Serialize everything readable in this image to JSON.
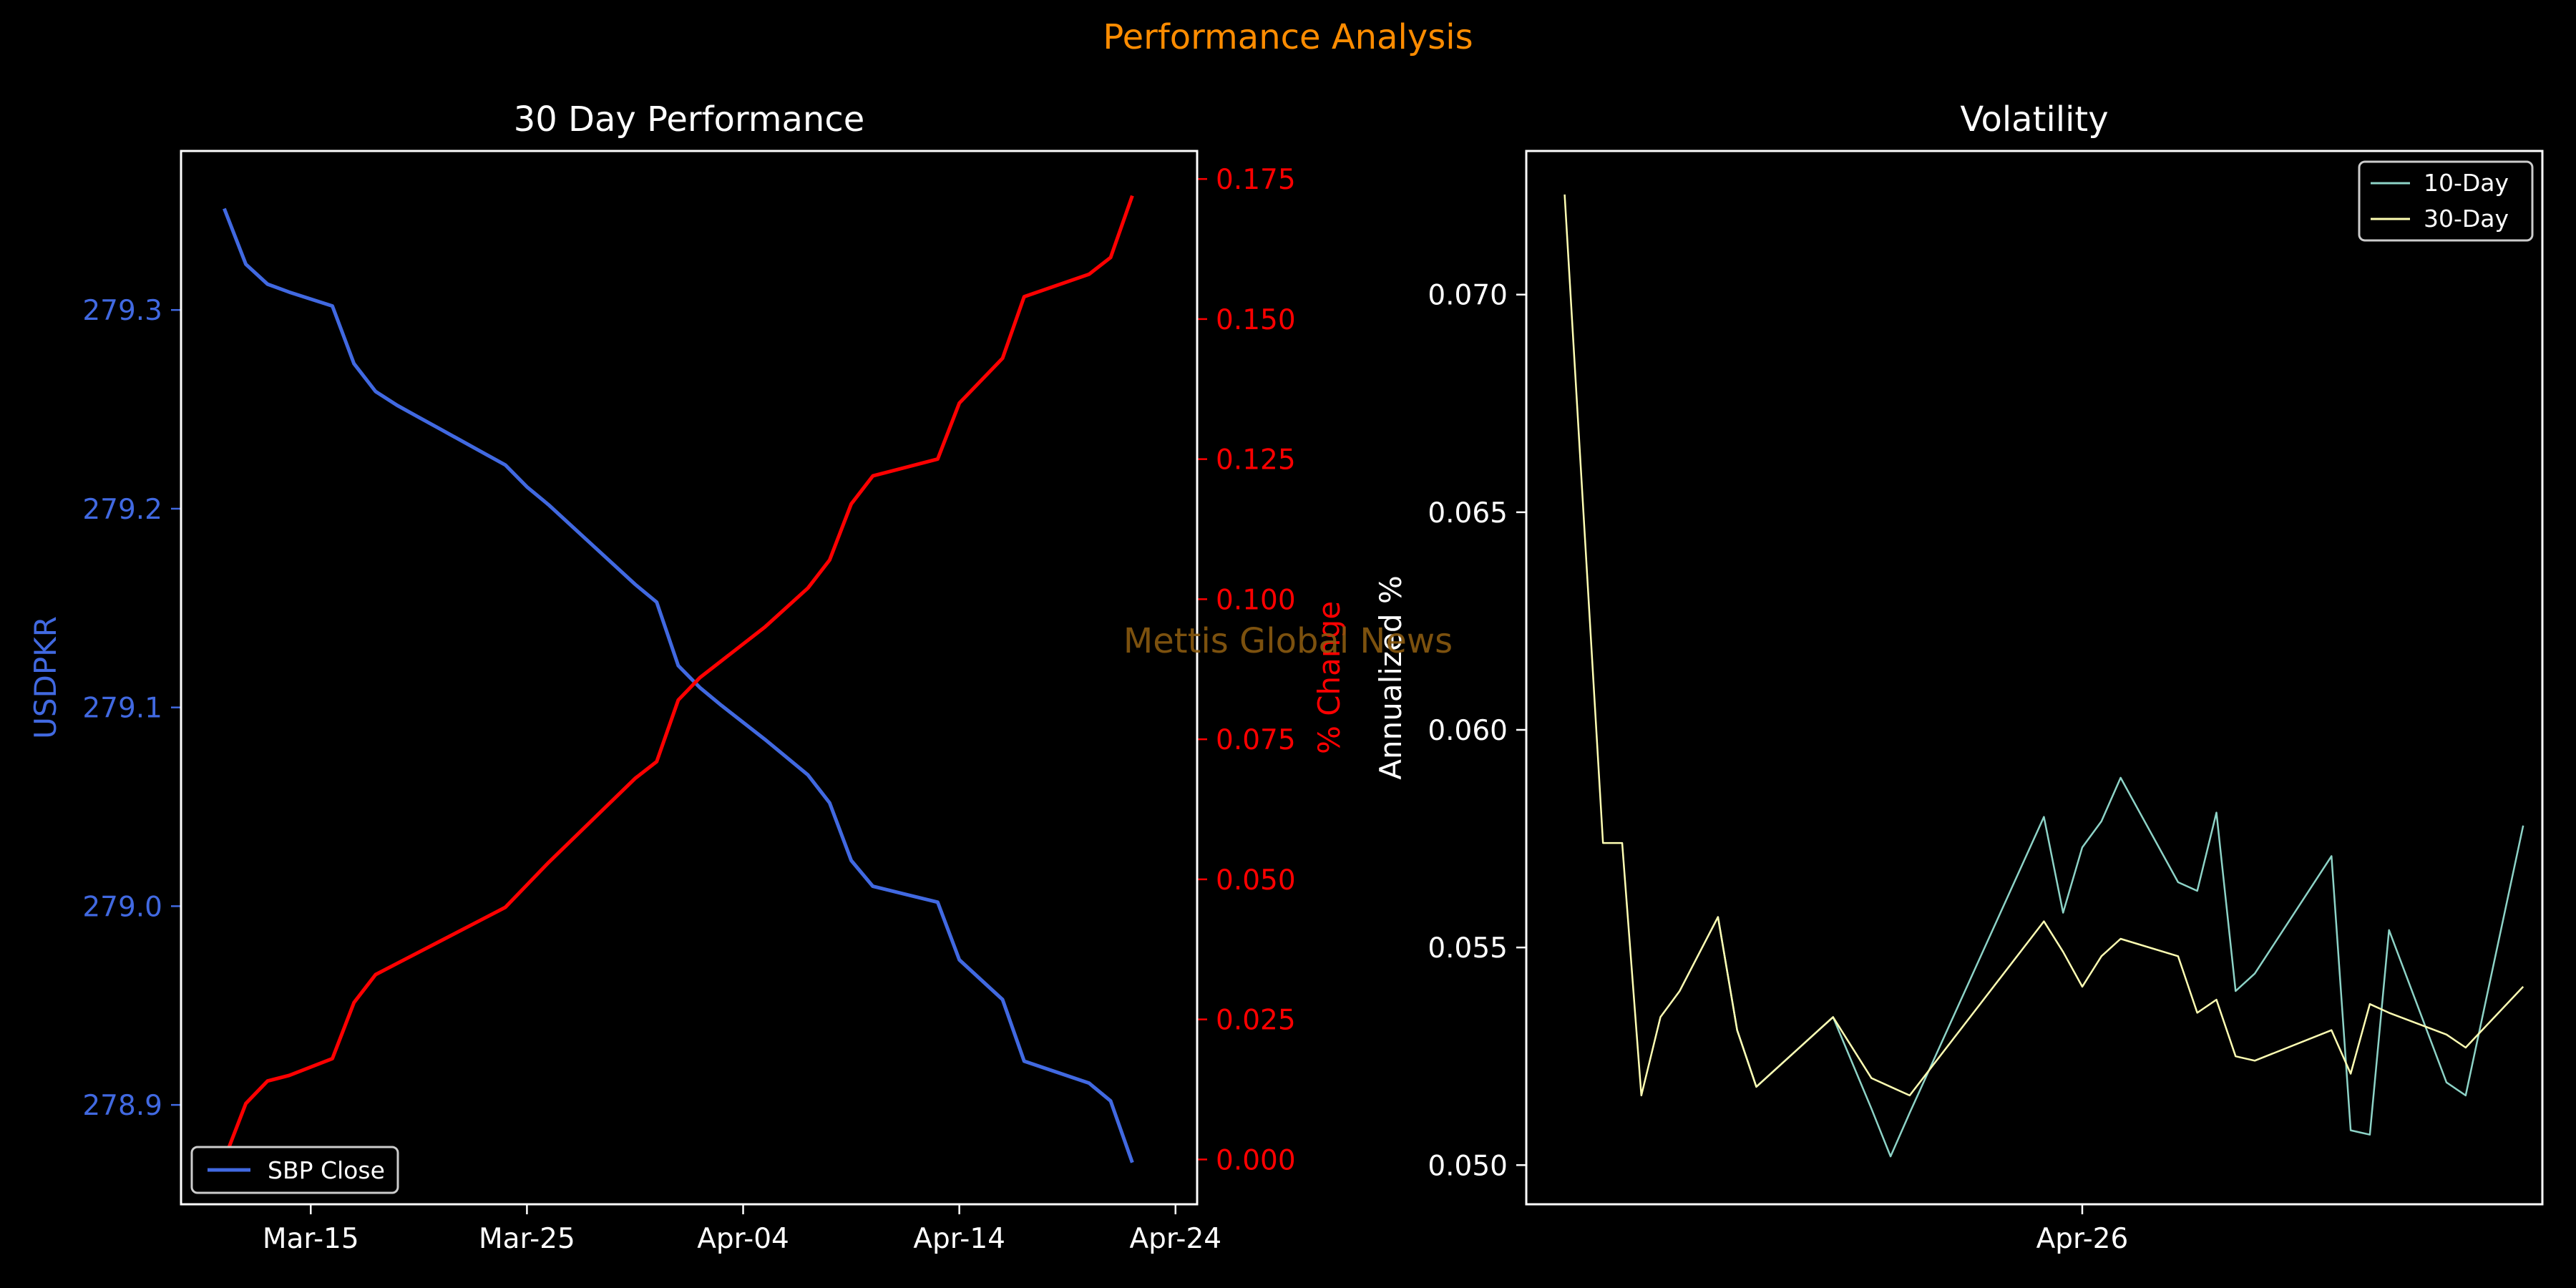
{
  "figure": {
    "suptitle": "Performance Analysis",
    "suptitle_color": "#ff8c00",
    "watermark": "Mettis Global News",
    "watermark_color": "#8a5a10",
    "background": "#000000",
    "foreground": "#ffffff"
  },
  "chart_data": [
    {
      "type": "line",
      "title": "30 Day Performance",
      "xlabel": "",
      "ylabel": "USDPKR",
      "ylabel_color": "#4169e1",
      "y2label": "% Change",
      "y2label_color": "#ff0000",
      "x_ticks": [
        "Mar-15",
        "Mar-25",
        "Apr-04",
        "Apr-14",
        "Apr-24"
      ],
      "x_tick_dates": [
        "2025-03-15",
        "2025-03-25",
        "2025-04-04",
        "2025-04-14",
        "2025-04-24"
      ],
      "xlim": [
        "2025-03-09",
        "2025-04-25"
      ],
      "ylim": [
        278.85,
        279.38
      ],
      "y_ticks": [
        278.9,
        279.0,
        279.1,
        279.2,
        279.3
      ],
      "y_tick_labels": [
        "278.9",
        "279.0",
        "279.1",
        "279.2",
        "279.3"
      ],
      "y2lim": [
        -0.008,
        0.18
      ],
      "y2_ticks": [
        0.0,
        0.025,
        0.05,
        0.075,
        0.1,
        0.125,
        0.15,
        0.175
      ],
      "y2_tick_labels": [
        "0.000",
        "0.025",
        "0.050",
        "0.075",
        "0.100",
        "0.125",
        "0.150",
        "0.175"
      ],
      "legend": {
        "labels": [
          "SBP Close"
        ],
        "placement": "lower-left"
      },
      "series": [
        {
          "name": "SBP Close",
          "axis": "left",
          "color": "#4169e1",
          "x": [
            "2025-03-11",
            "2025-03-12",
            "2025-03-13",
            "2025-03-14",
            "2025-03-16",
            "2025-03-17",
            "2025-03-18",
            "2025-03-19",
            "2025-03-20",
            "2025-03-21",
            "2025-03-23",
            "2025-03-24",
            "2025-03-25",
            "2025-03-26",
            "2025-03-30",
            "2025-03-31",
            "2025-04-01",
            "2025-04-02",
            "2025-04-03",
            "2025-04-05",
            "2025-04-07",
            "2025-04-08",
            "2025-04-09",
            "2025-04-10",
            "2025-04-13",
            "2025-04-14",
            "2025-04-16",
            "2025-04-17",
            "2025-04-20",
            "2025-04-21",
            "2025-04-22"
          ],
          "values": [
            279.351,
            279.323,
            279.313,
            279.309,
            279.302,
            279.273,
            279.259,
            279.252,
            279.246,
            279.24,
            279.228,
            279.222,
            279.211,
            279.202,
            279.162,
            279.153,
            279.121,
            279.11,
            279.101,
            279.084,
            279.066,
            279.052,
            279.023,
            279.01,
            279.002,
            278.973,
            278.953,
            278.922,
            278.911,
            278.902,
            278.871
          ]
        },
        {
          "name": "",
          "axis": "right",
          "color": "#ff0000",
          "x": [
            "2025-03-11",
            "2025-03-12",
            "2025-03-13",
            "2025-03-14",
            "2025-03-16",
            "2025-03-17",
            "2025-03-18",
            "2025-03-19",
            "2025-03-20",
            "2025-03-21",
            "2025-03-23",
            "2025-03-24",
            "2025-03-25",
            "2025-03-26",
            "2025-03-30",
            "2025-03-31",
            "2025-04-01",
            "2025-04-02",
            "2025-04-03",
            "2025-04-05",
            "2025-04-07",
            "2025-04-08",
            "2025-04-09",
            "2025-04-10",
            "2025-04-13",
            "2025-04-14",
            "2025-04-16",
            "2025-04-17",
            "2025-04-20",
            "2025-04-21",
            "2025-04-22"
          ],
          "values": [
            0.0,
            0.01,
            0.014,
            0.015,
            0.018,
            0.028,
            0.033,
            0.035,
            0.037,
            0.039,
            0.043,
            0.045,
            0.049,
            0.053,
            0.068,
            0.071,
            0.082,
            0.086,
            0.089,
            0.095,
            0.102,
            0.107,
            0.117,
            0.122,
            0.125,
            0.135,
            0.143,
            0.154,
            0.158,
            0.161,
            0.172
          ]
        }
      ]
    },
    {
      "type": "line",
      "title": "Volatility",
      "xlabel": "",
      "ylabel": "Annualized %",
      "ylabel_color": "#ffffff",
      "x_ticks": [
        "Apr-26"
      ],
      "x_tick_dates": [
        "2025-04-26"
      ],
      "xlim": [
        "2025-03-28",
        "2025-05-20"
      ],
      "ylim": [
        0.0491,
        0.0733
      ],
      "y_ticks": [
        0.05,
        0.055,
        0.06,
        0.065,
        0.07
      ],
      "y_tick_labels": [
        "0.050",
        "0.055",
        "0.060",
        "0.065",
        "0.070"
      ],
      "legend": {
        "labels": [
          "10-Day",
          "30-Day"
        ],
        "placement": "top-right"
      },
      "series": [
        {
          "name": "10-Day",
          "color": "#8dd3c7",
          "x": [
            "2025-04-07",
            "2025-04-08",
            "2025-04-09",
            "2025-04-13",
            "2025-04-15",
            "2025-04-16",
            "2025-04-17",
            "2025-04-24",
            "2025-04-25",
            "2025-04-26",
            "2025-04-27",
            "2025-04-28",
            "2025-05-01",
            "2025-05-02",
            "2025-05-03",
            "2025-05-04",
            "2025-05-05",
            "2025-05-09",
            "2025-05-10",
            "2025-05-11",
            "2025-05-12",
            "2025-05-15",
            "2025-05-16",
            "2025-05-19"
          ],
          "values": [
            0.0557,
            0.0531,
            0.0518,
            0.0534,
            0.0513,
            0.0502,
            0.0512,
            0.058,
            0.0558,
            0.0573,
            0.0579,
            0.0589,
            0.0565,
            0.0563,
            0.0581,
            0.054,
            0.0544,
            0.0571,
            0.0508,
            0.0507,
            0.0554,
            0.0519,
            0.0516,
            0.0578
          ]
        },
        {
          "name": "30-Day",
          "color": "#ffffb3",
          "x": [
            "2025-03-30",
            "2025-04-01",
            "2025-04-02",
            "2025-04-03",
            "2025-04-04",
            "2025-04-05",
            "2025-04-07",
            "2025-04-08",
            "2025-04-09",
            "2025-04-13",
            "2025-04-15",
            "2025-04-16",
            "2025-04-17",
            "2025-04-24",
            "2025-04-25",
            "2025-04-26",
            "2025-04-27",
            "2025-04-28",
            "2025-05-01",
            "2025-05-02",
            "2025-05-03",
            "2025-05-04",
            "2025-05-05",
            "2025-05-09",
            "2025-05-10",
            "2025-05-11",
            "2025-05-12",
            "2025-05-15",
            "2025-05-16",
            "2025-05-19"
          ],
          "values": [
            0.0723,
            0.0574,
            0.0574,
            0.0516,
            0.0534,
            0.054,
            0.0557,
            0.0531,
            0.0518,
            0.0534,
            0.052,
            0.0518,
            0.0516,
            0.0556,
            0.0549,
            0.0541,
            0.0548,
            0.0552,
            0.0548,
            0.0535,
            0.0538,
            0.0525,
            0.0524,
            0.0531,
            0.0521,
            0.0537,
            0.0535,
            0.053,
            0.0527,
            0.0541
          ]
        }
      ]
    }
  ]
}
